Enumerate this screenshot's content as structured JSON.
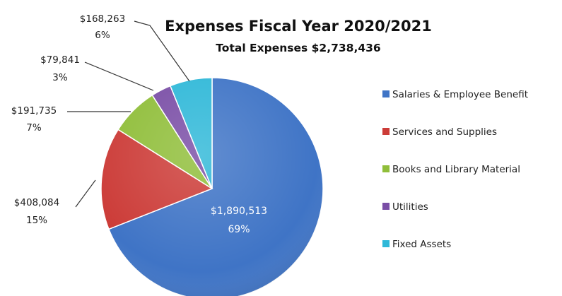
{
  "chart_data": {
    "type": "pie",
    "title": "Expenses Fiscal Year 2020/2021",
    "subtitle": "Total Expenses $2,738,436",
    "legend_position": "right",
    "slices": [
      {
        "name": "Salaries & Employee Benefit",
        "value": 1890513,
        "value_label": "$1,890,513",
        "percent_label": "69%",
        "color": "#3f74c6"
      },
      {
        "name": "Services and Supplies",
        "value": 408084,
        "value_label": "$408,084",
        "percent_label": "15%",
        "color": "#cc3c38"
      },
      {
        "name": "Books and Library Material",
        "value": 191735,
        "value_label": "$191,735",
        "percent_label": "7%",
        "color": "#90be3a"
      },
      {
        "name": "Utilities",
        "value": 79841,
        "value_label": "$79,841",
        "percent_label": "3%",
        "color": "#7a4ea6"
      },
      {
        "name": "Fixed Assets",
        "value": 168263,
        "value_label": "$168,263",
        "percent_label": "6%",
        "color": "#2fb8d8"
      }
    ]
  }
}
